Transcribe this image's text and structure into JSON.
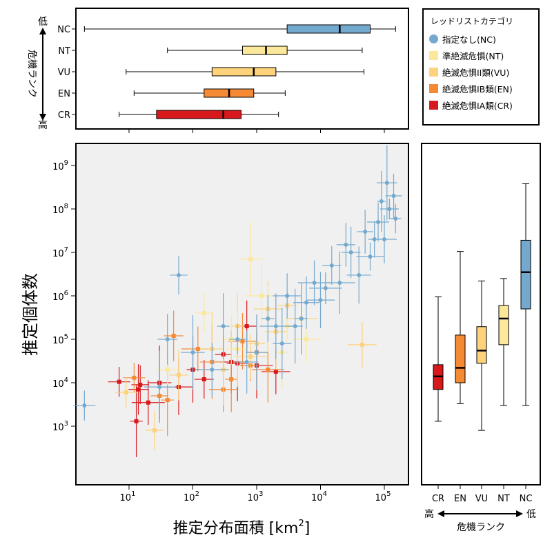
{
  "colors": {
    "CR": "#d7191c",
    "EN": "#f58a35",
    "VU": "#fdd27a",
    "NT": "#fbe89a",
    "NC": "#74a9cf",
    "bg": "#f0f0f0"
  },
  "chart_data": [
    {
      "type": "box",
      "orientation": "horizontal",
      "ylabel": "危機ランク",
      "y_top_label": "低",
      "y_bottom_label": "高",
      "categories": [
        "NC",
        "NT",
        "VU",
        "EN",
        "CR"
      ],
      "x_scale": "log10",
      "boxes": [
        {
          "cat": "NC",
          "min": 2,
          "q1": 3000,
          "median": 20000,
          "q3": 60000,
          "max": 150000
        },
        {
          "cat": "NT",
          "min": 40,
          "q1": 600,
          "median": 1400,
          "q3": 3000,
          "max": 45000
        },
        {
          "cat": "VU",
          "min": 9,
          "q1": 200,
          "median": 900,
          "q3": 2000,
          "max": 48000
        },
        {
          "cat": "EN",
          "min": 12,
          "q1": 150,
          "median": 370,
          "q3": 900,
          "max": 2800
        },
        {
          "cat": "CR",
          "min": 7,
          "q1": 27,
          "median": 300,
          "q3": 570,
          "max": 2200
        }
      ]
    },
    {
      "type": "scatter",
      "xlabel": "推定分布面積 [km²]",
      "xlabel_main": "推定分布面積 [km",
      "xlabel_sup": "2",
      "xlabel_tail": "]",
      "ylabel": "推定個体数",
      "x_scale": "log10",
      "y_scale": "log10",
      "xlim": [
        1.3,
        200000
      ],
      "ylim": [
        30,
        3000000000
      ],
      "x_ticks": {
        "base": "10",
        "exps": [
          "1",
          "2",
          "3",
          "4",
          "5"
        ]
      },
      "y_ticks": {
        "base": "10",
        "exps": [
          "3",
          "4",
          "5",
          "6",
          "7",
          "8",
          "9"
        ]
      },
      "series": [
        {
          "cat": "CR",
          "points": [
            [
              7,
              10500
            ],
            [
              15,
              9000
            ],
            [
              14,
              7000
            ],
            [
              30,
              10000
            ],
            [
              100,
              20000
            ],
            [
              300,
              45000
            ],
            [
              500,
              28000
            ],
            [
              1000,
              25000
            ],
            [
              2000,
              18000
            ],
            [
              13,
              1300
            ],
            [
              20,
              3500
            ],
            [
              60,
              8000
            ],
            [
              150,
              12000
            ],
            [
              400,
              30000
            ],
            [
              700,
              200000
            ]
          ]
        },
        {
          "cat": "EN",
          "points": [
            [
              12,
              13000
            ],
            [
              30,
              5000
            ],
            [
              50,
              120000
            ],
            [
              200,
              30000
            ],
            [
              400,
              12000
            ],
            [
              800,
              25000
            ],
            [
              1000,
              50000
            ],
            [
              1500,
              20000
            ],
            [
              300,
              7000
            ],
            [
              40,
              4000
            ],
            [
              120,
              60000
            ],
            [
              600,
              90000
            ]
          ]
        },
        {
          "cat": "VU",
          "points": [
            [
              9,
              6000
            ],
            [
              25,
              800
            ],
            [
              60,
              15000
            ],
            [
              200,
              60000
            ],
            [
              500,
              200000
            ],
            [
              1000,
              80000
            ],
            [
              2000,
              150000
            ],
            [
              5000,
              300000
            ],
            [
              45000,
              75000
            ],
            [
              300,
              20000
            ],
            [
              800,
              40000
            ],
            [
              1500,
              500000
            ],
            [
              3000,
              600000
            ]
          ]
        },
        {
          "cat": "NT",
          "points": [
            [
              40,
              20000
            ],
            [
              150,
              400000
            ],
            [
              400,
              100000
            ],
            [
              800,
              7000000
            ],
            [
              1500,
              300000
            ],
            [
              3000,
              200000
            ],
            [
              500,
              60000
            ],
            [
              1200,
              1000000
            ],
            [
              6000,
              100000
            ],
            [
              2500,
              50000
            ]
          ]
        },
        {
          "cat": "NC",
          "points": [
            [
              2,
              3000
            ],
            [
              60,
              3000000
            ],
            [
              40,
              100000
            ],
            [
              100,
              50000
            ],
            [
              300,
              200000
            ],
            [
              500,
              100000
            ],
            [
              1000,
              50000
            ],
            [
              2000,
              200000
            ],
            [
              3000,
              1000000
            ],
            [
              5000,
              300000
            ],
            [
              8000,
              2000000
            ],
            [
              10000,
              800000
            ],
            [
              15000,
              5000000
            ],
            [
              20000,
              2000000
            ],
            [
              30000,
              10000000
            ],
            [
              40000,
              3000000
            ],
            [
              50000,
              30000000
            ],
            [
              60000,
              8000000
            ],
            [
              80000,
              50000000
            ],
            [
              100000,
              20000000
            ],
            [
              120000,
              100000000
            ],
            [
              150000,
              60000000
            ],
            [
              140000,
              200000000
            ],
            [
              110000,
              400000000
            ],
            [
              90000,
              150000000
            ],
            [
              70000,
              20000000
            ],
            [
              25000,
              15000000
            ],
            [
              12000,
              1500000
            ],
            [
              6000,
              700000
            ],
            [
              4000,
              200000
            ],
            [
              2500,
              80000
            ],
            [
              1500,
              300000
            ],
            [
              700,
              30000
            ],
            [
              200,
              20000
            ],
            [
              30,
              8000
            ]
          ]
        }
      ]
    },
    {
      "type": "box",
      "orientation": "vertical",
      "xlabel": "危機ランク",
      "x_left_label": "高",
      "x_right_label": "低",
      "categories": [
        "CR",
        "EN",
        "VU",
        "NT",
        "NC"
      ],
      "y_scale": "log10",
      "boxes": [
        {
          "cat": "CR",
          "min": 1300,
          "q1": 7000,
          "median": 14000,
          "q3": 26000,
          "max": 950000
        },
        {
          "cat": "EN",
          "min": 3300,
          "q1": 10000,
          "median": 22000,
          "q3": 125000,
          "max": 10500000
        },
        {
          "cat": "VU",
          "min": 800,
          "q1": 28000,
          "median": 55000,
          "q3": 195000,
          "max": 2200000
        },
        {
          "cat": "NT",
          "min": 3000,
          "q1": 75000,
          "median": 300000,
          "q3": 600000,
          "max": 2500000
        },
        {
          "cat": "NC",
          "min": 3000,
          "q1": 500000,
          "median": 3500000,
          "q3": 19000000,
          "max": 380000000
        }
      ]
    }
  ],
  "legend": {
    "title": "レッドリストカテゴリ",
    "items": [
      {
        "cat": "NC",
        "label": "指定なし(NC)"
      },
      {
        "cat": "NT",
        "label": "準絶滅危惧(NT)"
      },
      {
        "cat": "VU",
        "label": "絶滅危惧II類(VU)"
      },
      {
        "cat": "EN",
        "label": "絶滅危惧IB類(EN)"
      },
      {
        "cat": "CR",
        "label": "絶滅危惧IA類(CR)"
      }
    ]
  }
}
